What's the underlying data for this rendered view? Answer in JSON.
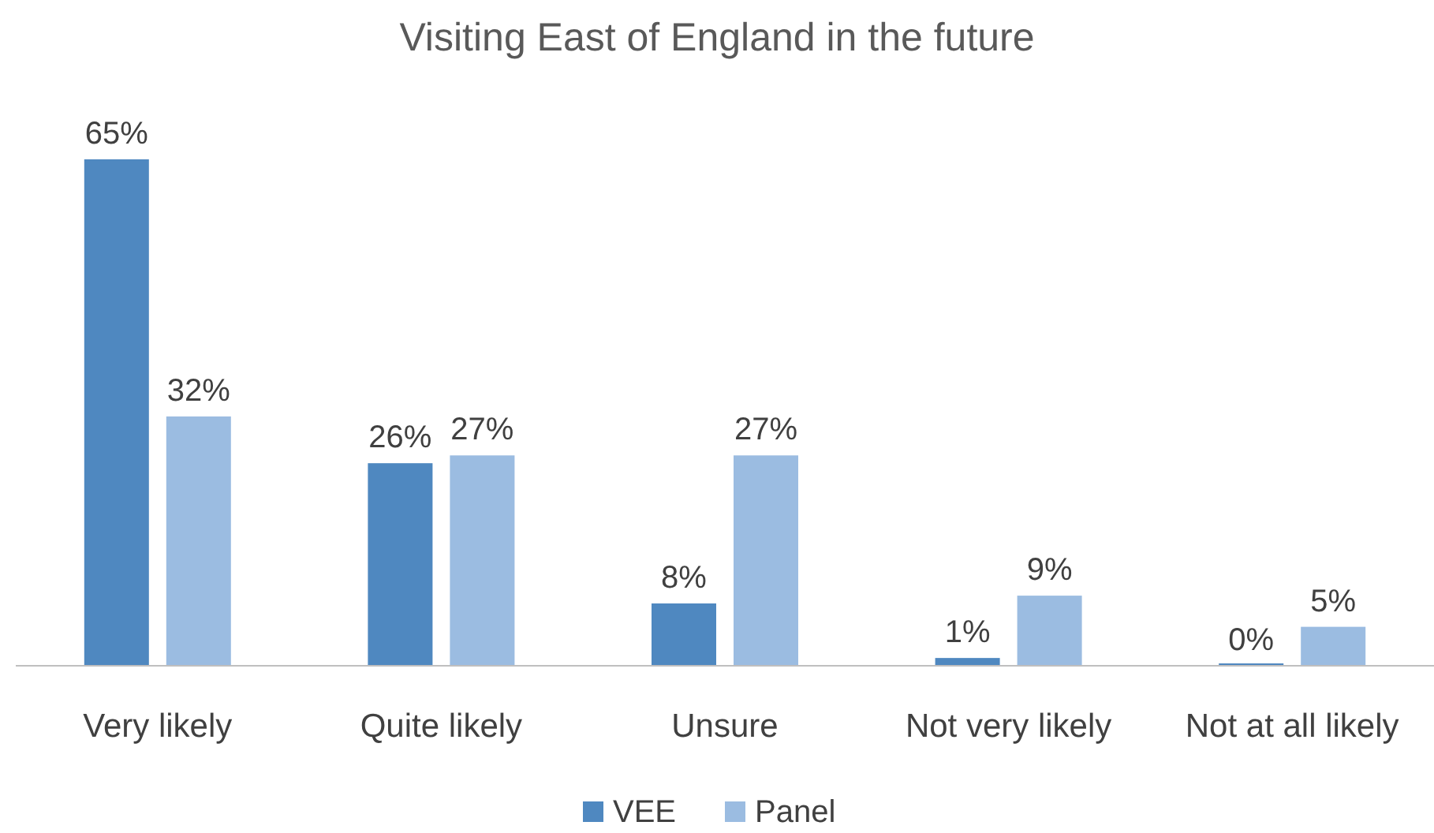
{
  "chart_data": {
    "type": "bar",
    "title": "Visiting East of England in the future",
    "categories": [
      "Very likely",
      "Quite likely",
      "Unsure",
      "Not very likely",
      "Not at all likely"
    ],
    "series": [
      {
        "name": "VEE",
        "color": "#4f88c0",
        "values": [
          65,
          26,
          8,
          1,
          0
        ],
        "value_labels": [
          "65%",
          "26%",
          "8%",
          "1%",
          "0%"
        ]
      },
      {
        "name": "Panel",
        "color": "#9bbce1",
        "values": [
          32,
          27,
          27,
          9,
          5
        ],
        "value_labels": [
          "32%",
          "27%",
          "27%",
          "9%",
          "5%"
        ]
      }
    ],
    "legend": "bottom"
  }
}
